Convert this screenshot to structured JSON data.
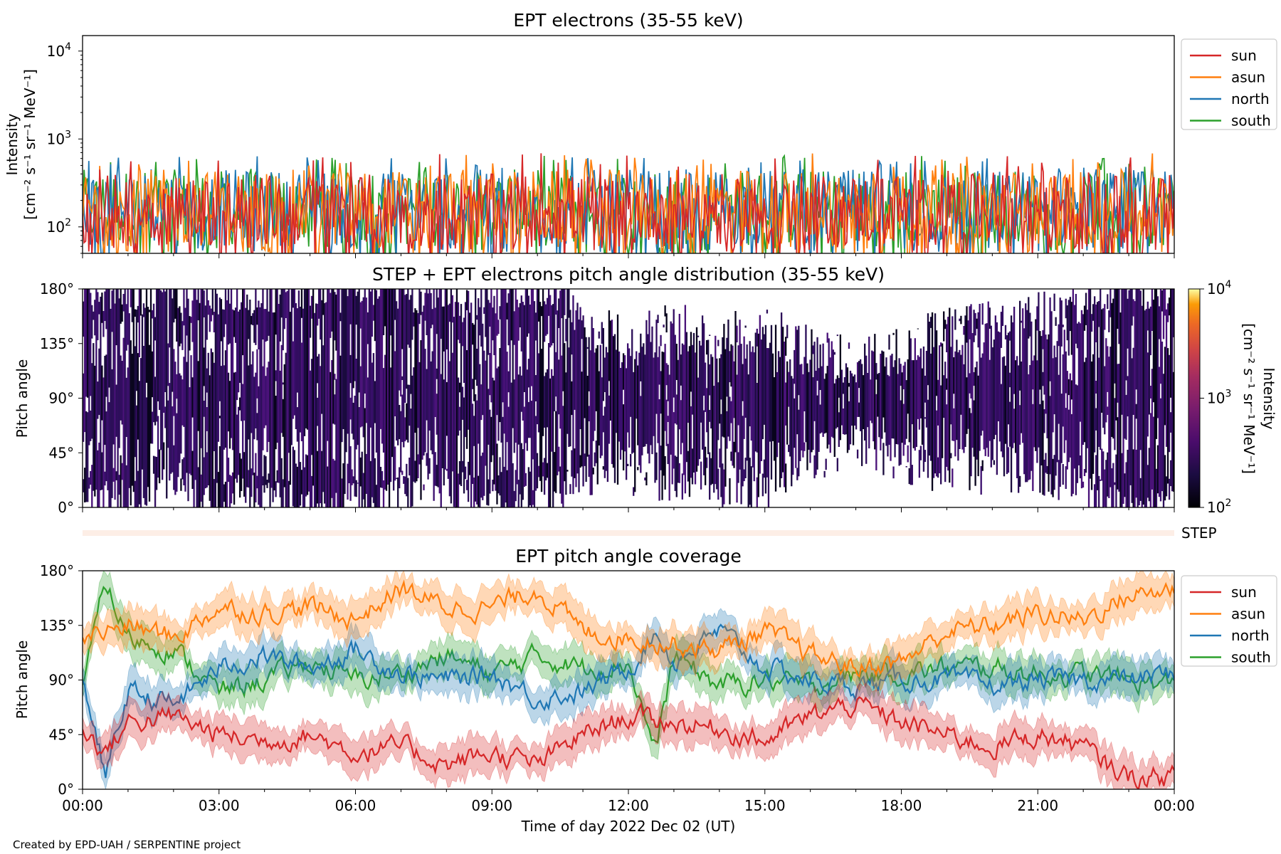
{
  "figure": {
    "credit": "Created by EPD-UAH / SERPENTINE project",
    "xlabel": "Time of day 2022 Dec 02 (UT)",
    "xticks": [
      "00:00",
      "03:00",
      "06:00",
      "09:00",
      "12:00",
      "15:00",
      "18:00",
      "21:00",
      "00:00"
    ]
  },
  "colors": {
    "sun": "#d62728",
    "asun": "#ff7f0e",
    "north": "#1f77b4",
    "south": "#2ca02c"
  },
  "chart_data": [
    {
      "type": "line",
      "title": "EPT electrons (35-55 keV)",
      "ylabel_line1": "Intensity",
      "ylabel_line2": "[cm⁻² s⁻¹ sr⁻¹ MeV⁻¹]",
      "yscale": "log",
      "ylim": [
        50,
        15000
      ],
      "yticks": [
        {
          "value": 100,
          "base": "10",
          "exp": "2"
        },
        {
          "value": 1000,
          "base": "10",
          "exp": "3"
        },
        {
          "value": 10000,
          "base": "10",
          "exp": "4"
        }
      ],
      "xlim_hours": [
        0,
        24
      ],
      "legend": {
        "position": "outside-right",
        "entries": [
          "sun",
          "asun",
          "north",
          "south"
        ]
      },
      "series": [
        {
          "name": "sun",
          "typical_range": [
            60,
            400
          ],
          "max": 700
        },
        {
          "name": "asun",
          "typical_range": [
            60,
            450
          ],
          "max": 700
        },
        {
          "name": "north",
          "typical_range": [
            60,
            450
          ],
          "max": 650
        },
        {
          "name": "south",
          "typical_range": [
            60,
            450
          ],
          "max": 650
        }
      ]
    },
    {
      "type": "heatmap",
      "title": "STEP + EPT electrons pitch angle distribution (35-55 keV)",
      "ylabel": "Pitch angle",
      "yticks": [
        "0°",
        "45°",
        "90°",
        "135°",
        "180°"
      ],
      "ylim": [
        0,
        180
      ],
      "xlim_hours": [
        0,
        24
      ],
      "colorbar": {
        "label_line1": "Intensity",
        "label_line2": "[cm⁻² s⁻¹ sr⁻¹ MeV⁻¹]",
        "range": [
          100,
          10000
        ],
        "scale": "log",
        "ticks": [
          {
            "base": "10",
            "exp": "2"
          },
          {
            "base": "10",
            "exp": "3"
          },
          {
            "base": "10",
            "exp": "4"
          }
        ],
        "colormap": "inferno"
      },
      "step_label": "STEP"
    },
    {
      "type": "line",
      "title": "EPT pitch angle coverage",
      "ylabel": "Pitch angle",
      "yticks": [
        "0°",
        "45°",
        "90°",
        "135°",
        "180°"
      ],
      "ylim": [
        0,
        180
      ],
      "xlim_hours": [
        0,
        24
      ],
      "legend": {
        "position": "outside-right",
        "entries": [
          "sun",
          "asun",
          "north",
          "south"
        ]
      },
      "series": [
        {
          "name": "sun",
          "points": [
            [
              0,
              50
            ],
            [
              0.5,
              30
            ],
            [
              1,
              55
            ],
            [
              2,
              60
            ],
            [
              3,
              45
            ],
            [
              4,
              40
            ],
            [
              5,
              45
            ],
            [
              6,
              30
            ],
            [
              7,
              35
            ],
            [
              8,
              20
            ],
            [
              9,
              30
            ],
            [
              10,
              20
            ],
            [
              11,
              45
            ],
            [
              12,
              60
            ],
            [
              13,
              55
            ],
            [
              14,
              50
            ],
            [
              15,
              40
            ],
            [
              16,
              60
            ],
            [
              17,
              70
            ],
            [
              18,
              55
            ],
            [
              19,
              45
            ],
            [
              20,
              35
            ],
            [
              21,
              45
            ],
            [
              22,
              35
            ],
            [
              22.5,
              20
            ],
            [
              23,
              10
            ],
            [
              24,
              10
            ]
          ]
        },
        {
          "name": "asun",
          "points": [
            [
              0,
              125
            ],
            [
              1,
              135
            ],
            [
              2,
              125
            ],
            [
              3,
              150
            ],
            [
              4,
              145
            ],
            [
              5,
              150
            ],
            [
              6,
              140
            ],
            [
              7,
              165
            ],
            [
              8,
              150
            ],
            [
              9,
              150
            ],
            [
              10,
              165
            ],
            [
              11,
              130
            ],
            [
              12,
              125
            ],
            [
              13,
              120
            ],
            [
              14,
              115
            ],
            [
              15,
              130
            ],
            [
              16,
              110
            ],
            [
              17,
              100
            ],
            [
              18,
              105
            ],
            [
              19,
              130
            ],
            [
              20,
              135
            ],
            [
              21,
              145
            ],
            [
              22,
              140
            ],
            [
              23,
              160
            ],
            [
              24,
              165
            ]
          ]
        },
        {
          "name": "north",
          "points": [
            [
              0,
              95
            ],
            [
              0.5,
              10
            ],
            [
              1,
              80
            ],
            [
              2,
              70
            ],
            [
              3,
              100
            ],
            [
              4,
              110
            ],
            [
              5,
              100
            ],
            [
              6,
              115
            ],
            [
              7,
              95
            ],
            [
              8,
              90
            ],
            [
              9,
              95
            ],
            [
              10,
              75
            ],
            [
              11,
              80
            ],
            [
              12,
              100
            ],
            [
              12.6,
              130
            ],
            [
              13,
              105
            ],
            [
              14,
              130
            ],
            [
              15,
              100
            ],
            [
              16,
              90
            ],
            [
              17,
              85
            ],
            [
              18,
              90
            ],
            [
              19,
              90
            ],
            [
              20,
              85
            ],
            [
              21,
              90
            ],
            [
              22,
              90
            ],
            [
              23,
              90
            ],
            [
              24,
              95
            ]
          ]
        },
        {
          "name": "south",
          "points": [
            [
              0,
              85
            ],
            [
              0.5,
              170
            ],
            [
              1,
              125
            ],
            [
              2,
              115
            ],
            [
              3,
              80
            ],
            [
              4,
              90
            ],
            [
              5,
              105
            ],
            [
              6,
              90
            ],
            [
              7,
              95
            ],
            [
              8,
              110
            ],
            [
              9,
              95
            ],
            [
              10,
              110
            ],
            [
              11,
              100
            ],
            [
              12,
              105
            ],
            [
              12.6,
              30
            ],
            [
              13,
              110
            ],
            [
              14,
              85
            ],
            [
              15,
              90
            ],
            [
              16,
              85
            ],
            [
              17,
              95
            ],
            [
              18,
              95
            ],
            [
              19,
              100
            ],
            [
              20,
              100
            ],
            [
              21,
              95
            ],
            [
              22,
              95
            ],
            [
              23,
              90
            ],
            [
              24,
              85
            ]
          ]
        }
      ]
    }
  ]
}
